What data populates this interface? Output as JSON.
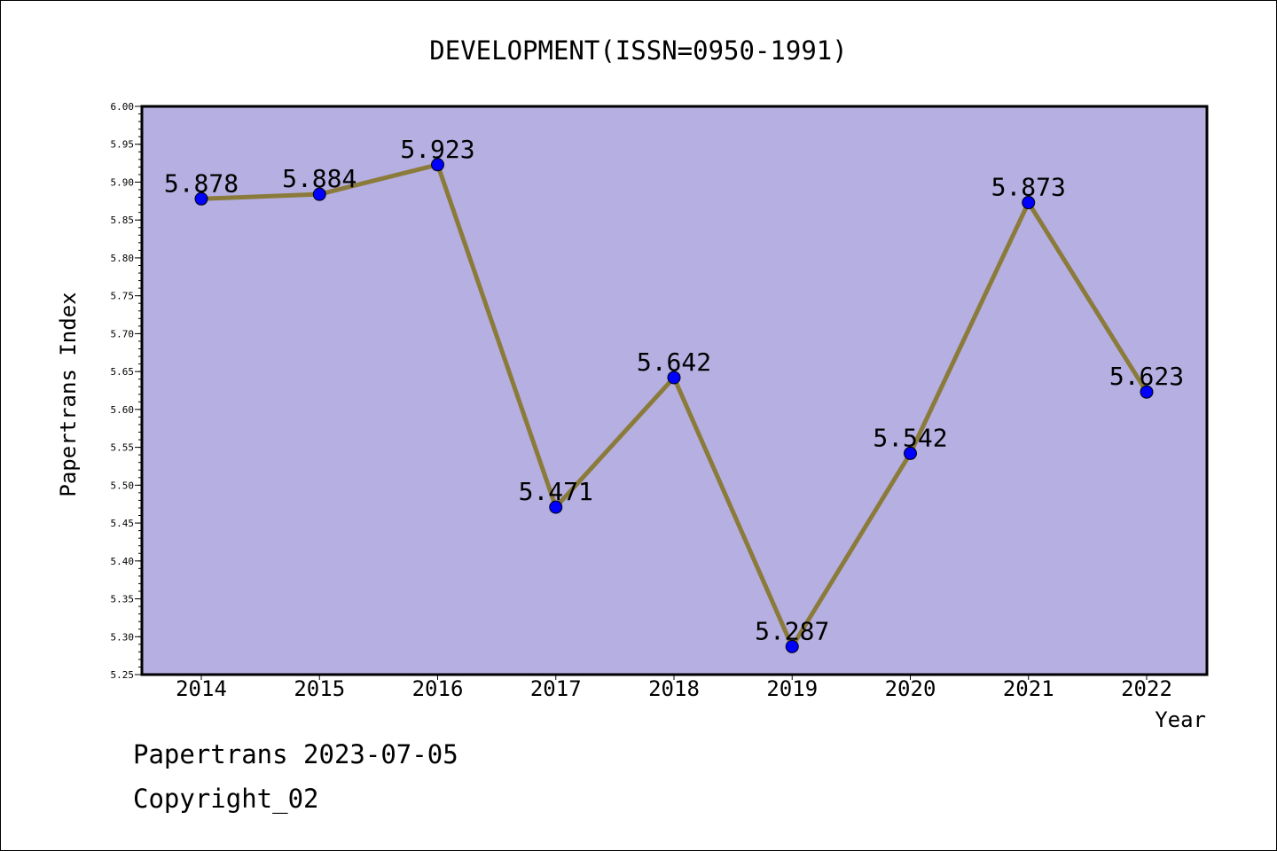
{
  "chart_data": {
    "type": "line",
    "title": "DEVELOPMENT(ISSN=0950-1991)",
    "xlabel": "Year",
    "ylabel": "Papertrans Index",
    "categories": [
      "2014",
      "2015",
      "2016",
      "2017",
      "2018",
      "2019",
      "2020",
      "2021",
      "2022"
    ],
    "values": [
      5.878,
      5.884,
      5.923,
      5.471,
      5.642,
      5.287,
      5.542,
      5.873,
      5.623
    ],
    "data_labels": [
      "5.878",
      "5.884",
      "5.923",
      "5.471",
      "5.642",
      "5.287",
      "5.542",
      "5.873",
      "5.623"
    ],
    "ylim": [
      5.25,
      6.0
    ],
    "yticks": [
      "5.25",
      "5.30",
      "5.35",
      "5.40",
      "5.45",
      "5.50",
      "5.55",
      "5.60",
      "5.65",
      "5.70",
      "5.75",
      "5.80",
      "5.85",
      "5.90",
      "5.95",
      "6.00"
    ],
    "grid": false,
    "legend": "none",
    "colors": {
      "plot_background": "#b5afe2",
      "line": "#8b7b3a",
      "marker": "#0000ff"
    }
  },
  "footer": {
    "date_line": "Papertrans 2023-07-05",
    "copyright": "Copyright_02"
  }
}
